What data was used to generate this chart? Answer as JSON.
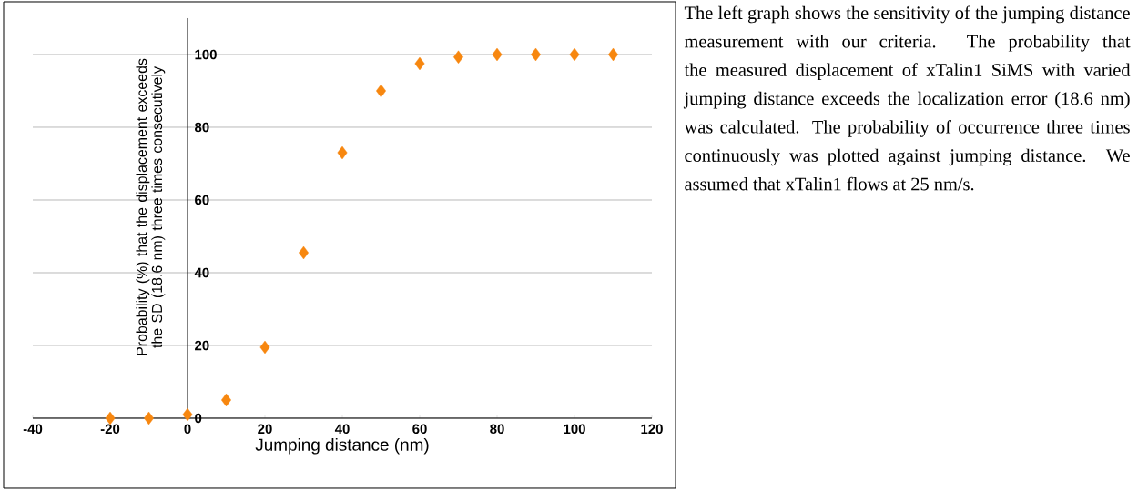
{
  "chart_data": {
    "type": "scatter",
    "xlabel": "Jumping distance (nm)",
    "ylabel": "Probability (%) that the displacement exceeds the SD (18.6 nm) three times consecutively",
    "x": [
      -20,
      -10,
      0,
      10,
      20,
      30,
      40,
      50,
      60,
      70,
      80,
      90,
      100,
      110
    ],
    "series": [
      {
        "color": "#f7870f",
        "values": [
          0,
          0,
          1,
          5,
          19.5,
          45.5,
          73,
          90,
          97.5,
          99.3,
          100,
          100,
          100,
          100
        ]
      }
    ],
    "marker": "diamond",
    "grid": "y",
    "xlim": [
      -40,
      120
    ],
    "xticks": [
      -40,
      -20,
      0,
      20,
      40,
      60,
      80,
      100,
      120
    ],
    "ylim": [
      0,
      110
    ],
    "yticks": [
      0,
      20,
      40,
      60,
      80,
      100
    ],
    "annotations": [
      "The left graph shows the sensitivity of the jumping distance measurement with our criteria. The probability that the measured displacement of xTalin1 SiMS with varied jumping distance exceeds the localization error (18.6 nm) was calculated. The probability of occurrence three times continuously was plotted against jumping distance. We assumed that xTalin1 flows at 25 nm/s."
    ]
  }
}
